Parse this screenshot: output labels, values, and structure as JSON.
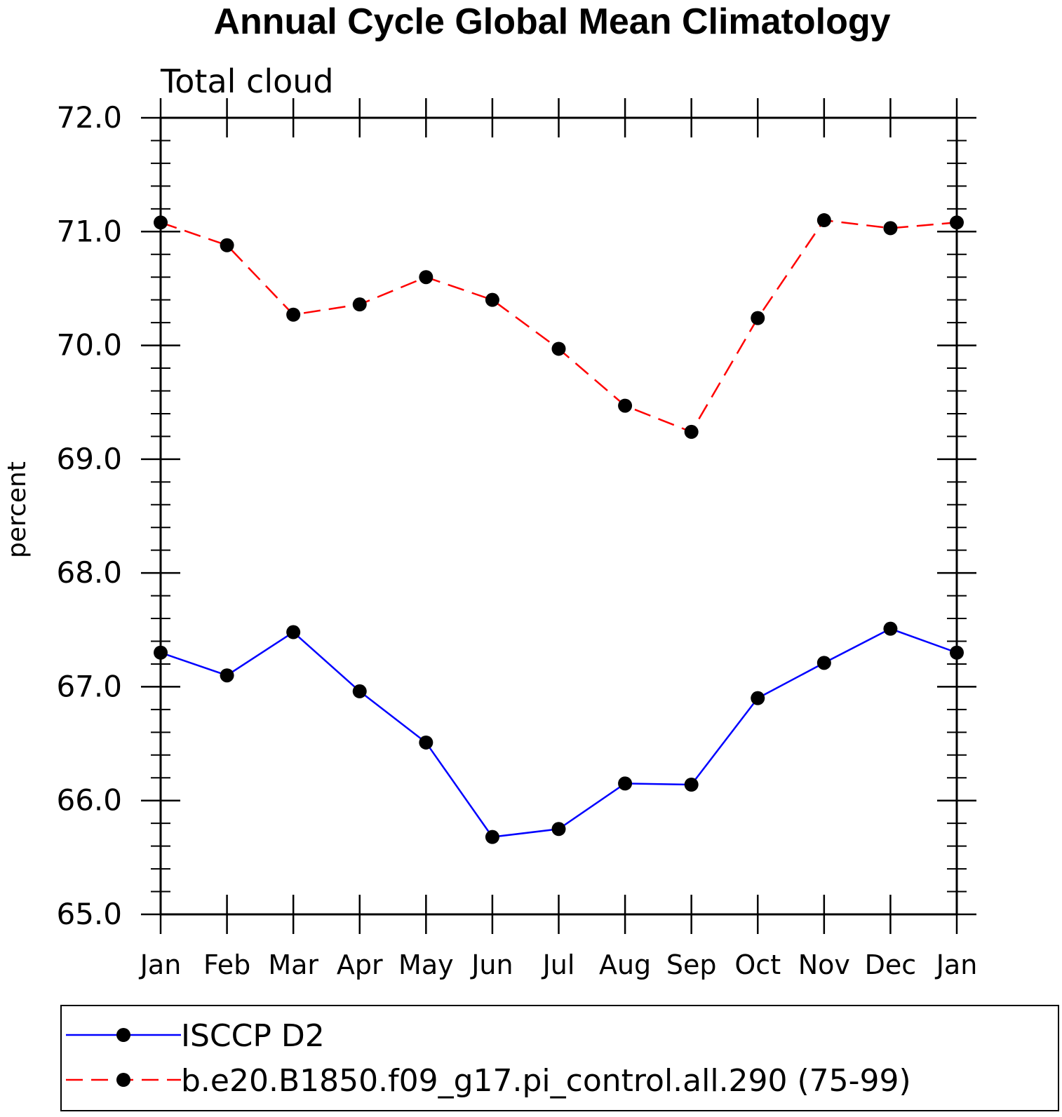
{
  "chart_data": {
    "type": "line",
    "title": "Annual Cycle Global Mean Climatology",
    "subtitle": "Total cloud",
    "ylabel": "percent",
    "xlabel": "",
    "categories": [
      "Jan",
      "Feb",
      "Mar",
      "Apr",
      "May",
      "Jun",
      "Jul",
      "Aug",
      "Sep",
      "Oct",
      "Nov",
      "Dec",
      "Jan"
    ],
    "ylim": [
      65.0,
      72.0
    ],
    "yticks": [
      "65.0",
      "66.0",
      "67.0",
      "68.0",
      "69.0",
      "70.0",
      "71.0",
      "72.0"
    ],
    "grid": false,
    "legend_position": "bottom",
    "series": [
      {
        "name": "ISCCP D2",
        "color": "#0000ff",
        "dash": "solid",
        "marker": "filled-circle",
        "values": [
          67.3,
          67.1,
          67.48,
          66.96,
          66.51,
          65.68,
          65.75,
          66.15,
          66.14,
          66.9,
          67.21,
          67.51,
          67.3
        ]
      },
      {
        "name": "b.e20.B1850.f09_g17.pi_control.all.290 (75-99)",
        "color": "#ff0000",
        "dash": "dashed",
        "marker": "filled-circle",
        "values": [
          71.08,
          70.88,
          70.27,
          70.36,
          70.6,
          70.4,
          69.97,
          69.47,
          69.24,
          70.24,
          71.1,
          71.03,
          71.08
        ]
      }
    ]
  }
}
